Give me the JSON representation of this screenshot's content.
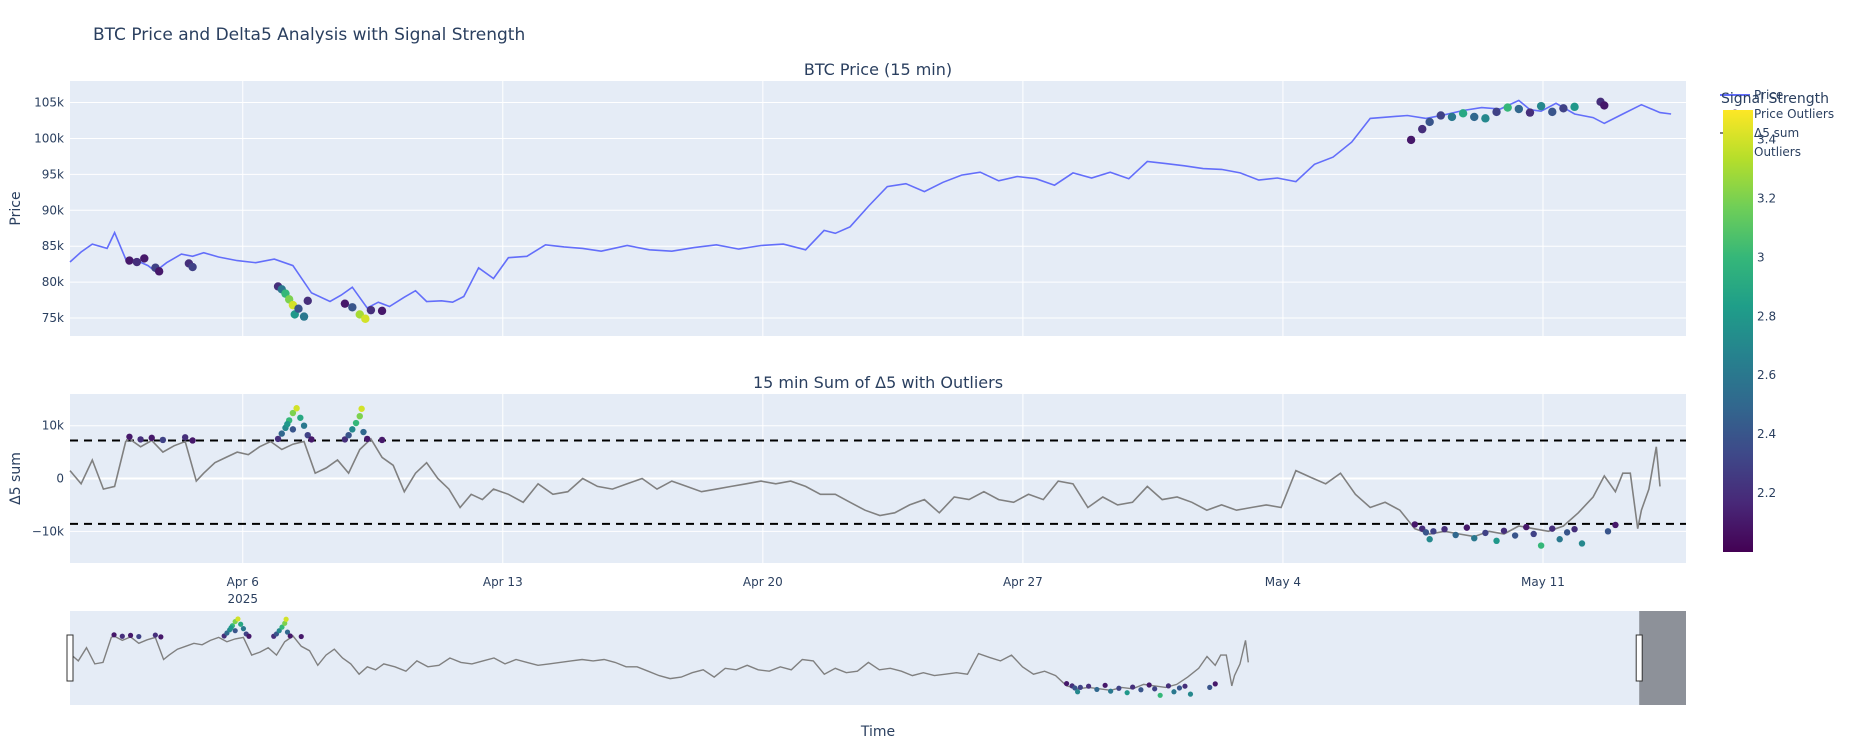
{
  "page_title": "BTC Price and Delta5 Analysis with Signal Strength",
  "chart_data": [
    {
      "id": "price",
      "type": "line",
      "title": "BTC Price (15 min)",
      "ylabel": "Price",
      "xlabel": "",
      "ylim": [
        72500,
        108000
      ],
      "yticks": [
        75000,
        80000,
        85000,
        90000,
        95000,
        100000,
        105000
      ],
      "ytick_labels": [
        "75k",
        "80k",
        "85k",
        "90k",
        "95k",
        "100k",
        "105k"
      ],
      "x_range_days": [
        0,
        43.5
      ],
      "series": [
        {
          "name": "Price",
          "color": "#636efa",
          "x": [
            0,
            0.3,
            0.6,
            1.0,
            1.2,
            1.5,
            1.8,
            2.1,
            2.3,
            2.6,
            3.0,
            3.3,
            3.6,
            4.0,
            4.5,
            5.0,
            5.5,
            6.0,
            6.5,
            7.0,
            7.3,
            7.6,
            8.0,
            8.3,
            8.6,
            9.0,
            9.3,
            9.6,
            10.0,
            10.3,
            10.6,
            11.0,
            11.4,
            11.8,
            12.3,
            12.8,
            13.3,
            13.8,
            14.3,
            15.0,
            15.6,
            16.2,
            16.8,
            17.4,
            18.0,
            18.6,
            19.2,
            19.8,
            20.3,
            20.6,
            21.0,
            21.5,
            22.0,
            22.5,
            23.0,
            23.5,
            24.0,
            24.5,
            25.0,
            25.5,
            26.0,
            26.5,
            27.0,
            27.5,
            28.0,
            28.5,
            29.0,
            29.5,
            30.0,
            30.5,
            31.0,
            31.5,
            32.0,
            32.5,
            33.0,
            33.5,
            34.0,
            34.5,
            35.0,
            35.5,
            36.0,
            36.5,
            37.0,
            37.5,
            38.0,
            38.5,
            39.0,
            39.3,
            39.6,
            40.0,
            40.5,
            41.0,
            41.3,
            41.8,
            42.3,
            42.8,
            43.1
          ],
          "values": [
            82800,
            84200,
            85300,
            84700,
            86900,
            83200,
            83000,
            82300,
            81500,
            82700,
            83900,
            83600,
            84100,
            83500,
            83000,
            82700,
            83200,
            82300,
            78500,
            77300,
            78200,
            79300,
            76400,
            77200,
            76600,
            77900,
            78800,
            77300,
            77400,
            77200,
            78000,
            82000,
            80500,
            83400,
            83600,
            85200,
            84900,
            84700,
            84300,
            85100,
            84500,
            84300,
            84800,
            85200,
            84600,
            85100,
            85300,
            84500,
            87200,
            86800,
            87700,
            90600,
            93300,
            93700,
            92600,
            93900,
            94900,
            95300,
            94100,
            94700,
            94400,
            93500,
            95200,
            94500,
            95300,
            94400,
            96800,
            96500,
            96200,
            95800,
            95700,
            95200,
            94200,
            94500,
            94000,
            96400,
            97400,
            99500,
            102800,
            103000,
            103200,
            102800,
            103300,
            103900,
            104300,
            104100,
            105300,
            104000,
            103800,
            104900,
            103400,
            102900,
            102100,
            103400,
            104700,
            103600,
            103400
          ]
        }
      ],
      "outliers": {
        "name": "Price Outliers",
        "points": [
          [
            1.6,
            83000,
            2.1
          ],
          [
            1.8,
            82800,
            2.2
          ],
          [
            2.0,
            83300,
            2.1
          ],
          [
            2.3,
            82000,
            2.3
          ],
          [
            2.4,
            81500,
            2.1
          ],
          [
            3.2,
            82600,
            2.2
          ],
          [
            3.3,
            82100,
            2.3
          ],
          [
            5.6,
            79400,
            2.2
          ],
          [
            5.7,
            79000,
            2.6
          ],
          [
            5.8,
            78400,
            3.0
          ],
          [
            5.9,
            77600,
            3.2
          ],
          [
            6.0,
            76800,
            3.4
          ],
          [
            6.05,
            75500,
            2.8
          ],
          [
            6.15,
            76300,
            2.4
          ],
          [
            6.3,
            75200,
            2.6
          ],
          [
            6.4,
            77400,
            2.2
          ],
          [
            7.4,
            77000,
            2.1
          ],
          [
            7.6,
            76500,
            2.4
          ],
          [
            7.8,
            75500,
            3.3
          ],
          [
            7.95,
            74900,
            3.4
          ],
          [
            8.1,
            76100,
            2.2
          ],
          [
            8.4,
            76000,
            2.1
          ],
          [
            36.1,
            99800,
            2.1
          ],
          [
            36.4,
            101300,
            2.2
          ],
          [
            36.6,
            102300,
            2.4
          ],
          [
            36.9,
            103200,
            2.3
          ],
          [
            37.2,
            103000,
            2.6
          ],
          [
            37.5,
            103500,
            2.9
          ],
          [
            37.8,
            103000,
            2.5
          ],
          [
            38.1,
            102800,
            2.7
          ],
          [
            38.4,
            103700,
            2.3
          ],
          [
            38.7,
            104300,
            3.0
          ],
          [
            39.0,
            104100,
            2.5
          ],
          [
            39.3,
            103600,
            2.2
          ],
          [
            39.6,
            104500,
            2.7
          ],
          [
            39.9,
            103700,
            2.4
          ],
          [
            40.2,
            104200,
            2.3
          ],
          [
            40.5,
            104400,
            2.8
          ],
          [
            41.2,
            105100,
            2.2
          ],
          [
            41.3,
            104600,
            2.1
          ]
        ]
      },
      "legend": [
        "Price",
        "Price Outliers",
        "Δ5 sum",
        "Outliers"
      ]
    },
    {
      "id": "delta",
      "type": "line",
      "title": "15 min Sum of Δ5 with Outliers",
      "ylabel": "Δ5 sum",
      "ylim": [
        -16000,
        16000
      ],
      "yticks": [
        -10000,
        0,
        10000
      ],
      "ytick_labels": [
        "−10k",
        "0",
        "10k"
      ],
      "thresholds": [
        7200,
        -8600
      ],
      "xticks": [
        4.65,
        11.65,
        18.65,
        25.65,
        32.65,
        39.65
      ],
      "xtick_labels": [
        "Apr 6",
        "Apr 13",
        "Apr 20",
        "Apr 27",
        "May 4",
        "May 11"
      ],
      "xtick_sublabel": "2025",
      "series": [
        {
          "name": "Δ5 sum",
          "color": "#808080",
          "x": [
            0,
            0.3,
            0.6,
            0.9,
            1.2,
            1.5,
            1.6,
            1.9,
            2.2,
            2.5,
            2.8,
            3.1,
            3.4,
            3.6,
            3.9,
            4.2,
            4.5,
            4.8,
            5.1,
            5.4,
            5.7,
            6.0,
            6.3,
            6.6,
            6.9,
            7.2,
            7.5,
            7.8,
            8.1,
            8.4,
            8.7,
            9.0,
            9.3,
            9.6,
            9.9,
            10.2,
            10.5,
            10.8,
            11.1,
            11.4,
            11.8,
            12.2,
            12.6,
            13.0,
            13.4,
            13.8,
            14.2,
            14.6,
            15.0,
            15.4,
            15.8,
            16.2,
            16.6,
            17.0,
            17.4,
            17.8,
            18.2,
            18.6,
            19.0,
            19.4,
            19.8,
            20.2,
            20.6,
            21.0,
            21.4,
            21.8,
            22.2,
            22.6,
            23.0,
            23.4,
            23.8,
            24.2,
            24.6,
            25.0,
            25.4,
            25.8,
            26.2,
            26.6,
            27.0,
            27.4,
            27.8,
            28.2,
            28.6,
            29.0,
            29.4,
            29.8,
            30.2,
            30.6,
            31.0,
            31.4,
            31.8,
            32.2,
            32.6,
            33.0,
            33.4,
            33.8,
            34.2,
            34.6,
            35.0,
            35.4,
            35.8,
            36.2,
            36.6,
            37.0,
            37.4,
            37.8,
            38.2,
            38.6,
            39.0,
            39.4,
            39.8,
            40.2,
            40.6,
            41.0,
            41.3,
            41.6,
            41.8,
            42.0,
            42.2,
            42.3,
            42.5,
            42.7,
            42.8
          ],
          "values": [
            1500,
            -1000,
            3500,
            -2000,
            -1500,
            7000,
            7500,
            6000,
            7200,
            5000,
            6200,
            7000,
            -500,
            1000,
            3000,
            4000,
            5000,
            4500,
            6000,
            7000,
            5500,
            6500,
            7000,
            1000,
            2000,
            3500,
            1000,
            5500,
            7500,
            4000,
            2500,
            -2500,
            1000,
            3000,
            0,
            -2000,
            -5500,
            -3000,
            -4000,
            -2000,
            -3000,
            -4500,
            -1000,
            -3000,
            -2500,
            0,
            -1500,
            -2000,
            -1000,
            0,
            -2000,
            -500,
            -1500,
            -2500,
            -2000,
            -1500,
            -1000,
            -500,
            -1000,
            -500,
            -1500,
            -3000,
            -3000,
            -4500,
            -6000,
            -7000,
            -6500,
            -5000,
            -4000,
            -6500,
            -3500,
            -4000,
            -2500,
            -4000,
            -4500,
            -3000,
            -4000,
            -500,
            -1000,
            -5500,
            -3500,
            -5000,
            -4500,
            -1500,
            -4000,
            -3500,
            -4500,
            -6000,
            -5000,
            -6000,
            -5500,
            -5000,
            -5500,
            1500,
            200,
            -1000,
            1000,
            -3000,
            -5500,
            -4500,
            -6000,
            -9500,
            -10500,
            -10000,
            -10500,
            -11000,
            -10000,
            -10500,
            -9000,
            -9500,
            -10000,
            -9000,
            -6500,
            -3500,
            500,
            -2500,
            1000,
            1000,
            -9500,
            -6000,
            -2000,
            6000,
            -1500
          ]
        }
      ],
      "outliers": {
        "name": "Outliers",
        "points": [
          [
            1.6,
            7900,
            2.1
          ],
          [
            1.9,
            7400,
            2.2
          ],
          [
            2.2,
            7700,
            2.1
          ],
          [
            2.5,
            7300,
            2.3
          ],
          [
            3.1,
            7800,
            2.2
          ],
          [
            3.3,
            7200,
            2.1
          ],
          [
            5.6,
            7500,
            2.2
          ],
          [
            5.7,
            8500,
            2.5
          ],
          [
            5.8,
            9600,
            2.7
          ],
          [
            5.9,
            11000,
            3.0
          ],
          [
            6.0,
            12400,
            3.2
          ],
          [
            6.1,
            13300,
            3.4
          ],
          [
            6.2,
            11500,
            2.9
          ],
          [
            6.3,
            10000,
            2.6
          ],
          [
            6.4,
            8200,
            2.3
          ],
          [
            6.5,
            7400,
            2.1
          ],
          [
            6.0,
            9300,
            2.4
          ],
          [
            5.85,
            10300,
            2.8
          ],
          [
            7.4,
            7400,
            2.2
          ],
          [
            7.5,
            8200,
            2.4
          ],
          [
            7.6,
            9300,
            2.7
          ],
          [
            7.7,
            10500,
            3.0
          ],
          [
            7.8,
            11800,
            3.2
          ],
          [
            7.85,
            13200,
            3.4
          ],
          [
            7.9,
            8800,
            2.5
          ],
          [
            8.0,
            7500,
            2.1
          ],
          [
            8.4,
            7300,
            2.1
          ],
          [
            36.2,
            -8700,
            2.1
          ],
          [
            36.4,
            -9500,
            2.2
          ],
          [
            36.5,
            -10200,
            2.4
          ],
          [
            36.6,
            -11500,
            2.7
          ],
          [
            36.7,
            -10000,
            2.3
          ],
          [
            37.0,
            -9600,
            2.2
          ],
          [
            37.3,
            -10700,
            2.5
          ],
          [
            37.6,
            -9300,
            2.1
          ],
          [
            37.8,
            -11300,
            2.6
          ],
          [
            38.1,
            -10300,
            2.3
          ],
          [
            38.4,
            -11800,
            2.8
          ],
          [
            38.6,
            -9900,
            2.2
          ],
          [
            38.9,
            -10800,
            2.4
          ],
          [
            39.2,
            -9200,
            2.1
          ],
          [
            39.4,
            -10500,
            2.3
          ],
          [
            39.6,
            -12700,
            3.0
          ],
          [
            39.9,
            -9500,
            2.2
          ],
          [
            40.1,
            -11500,
            2.6
          ],
          [
            40.3,
            -10200,
            2.4
          ],
          [
            40.5,
            -9600,
            2.2
          ],
          [
            40.7,
            -12300,
            2.7
          ],
          [
            41.4,
            -10000,
            2.4
          ],
          [
            41.6,
            -8800,
            2.1
          ]
        ]
      }
    },
    {
      "id": "rangeslider",
      "type": "line",
      "title": "",
      "xlabel": "Time",
      "selected_range_days": [
        -13.9,
        43.1
      ],
      "full_range_days": [
        -13.9,
        44.8
      ],
      "ylim": [
        -16000,
        16000
      ],
      "left_history": [
        2000,
        -1000,
        3000,
        -2000,
        1500,
        -2500,
        2500,
        -1500,
        1000,
        -3000,
        2000,
        -500,
        1500,
        -2000,
        2500,
        -1000,
        3000,
        -1500,
        1000,
        -2500,
        2000,
        -500,
        3500,
        -1000,
        2000,
        -1500,
        3000,
        1000,
        4000
      ]
    }
  ],
  "colorbar": {
    "title": "Signal Strength",
    "min": 2.0,
    "max": 3.5,
    "ticks": [
      2.2,
      2.4,
      2.6,
      2.8,
      3.0,
      3.2,
      3.4
    ],
    "tick_labels": [
      "2.2",
      "2.4",
      "2.6",
      "2.8",
      "3",
      "3.2",
      "3.4"
    ],
    "colorscale": [
      "#440154",
      "#482878",
      "#3e4989",
      "#31688e",
      "#26828e",
      "#1f9e89",
      "#35b779",
      "#6ece58",
      "#b5de2b",
      "#fde725"
    ]
  },
  "colors": {
    "plot_bg": "#e5ecf6",
    "grid": "#ffffff",
    "text": "#2a3f5f",
    "price_line": "#636efa",
    "delta_line": "#808080",
    "threshold": "#000000",
    "mask": "#888c94"
  }
}
